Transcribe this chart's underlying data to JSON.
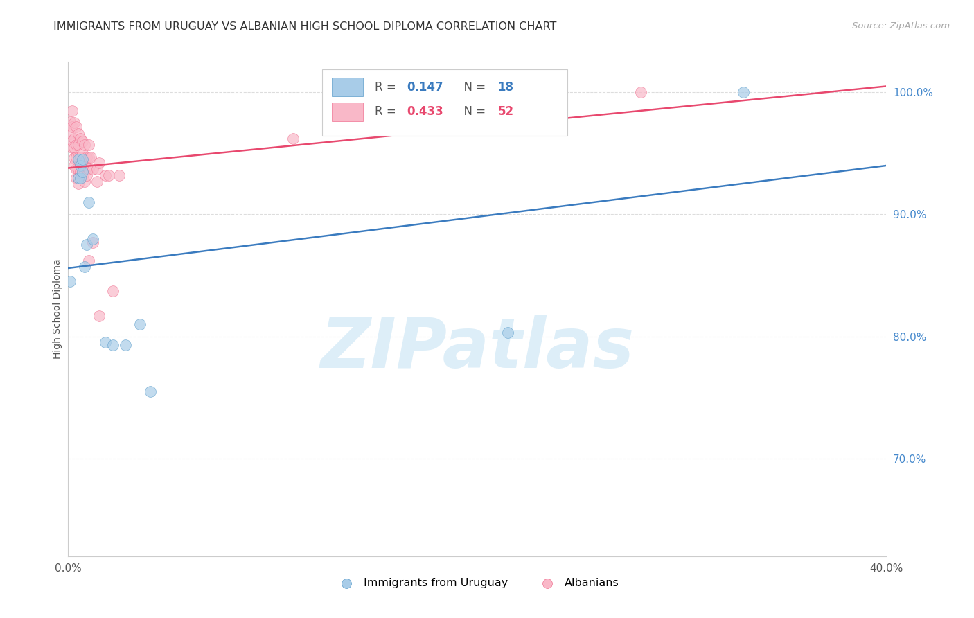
{
  "title": "IMMIGRANTS FROM URUGUAY VS ALBANIAN HIGH SCHOOL DIPLOMA CORRELATION CHART",
  "source": "Source: ZipAtlas.com",
  "ylabel": "High School Diploma",
  "xlim": [
    0.0,
    0.4
  ],
  "ylim": [
    0.62,
    1.025
  ],
  "yticks": [
    0.7,
    0.8,
    0.9,
    1.0
  ],
  "ytick_labels": [
    "70.0%",
    "80.0%",
    "90.0%",
    "100.0%"
  ],
  "xticks": [
    0.0,
    0.05,
    0.1,
    0.15,
    0.2,
    0.25,
    0.3,
    0.35,
    0.4
  ],
  "xtick_labels": [
    "0.0%",
    "",
    "",
    "",
    "",
    "",
    "",
    "",
    "40.0%"
  ],
  "blue_color": "#a8cce8",
  "pink_color": "#f9b8c8",
  "blue_edge_color": "#5b9dca",
  "pink_edge_color": "#f07090",
  "blue_line_color": "#3a7bbf",
  "pink_line_color": "#e8486e",
  "blue_scatter": [
    [
      0.001,
      0.845
    ],
    [
      0.005,
      0.93
    ],
    [
      0.005,
      0.945
    ],
    [
      0.006,
      0.94
    ],
    [
      0.006,
      0.93
    ],
    [
      0.007,
      0.945
    ],
    [
      0.007,
      0.935
    ],
    [
      0.008,
      0.857
    ],
    [
      0.009,
      0.875
    ],
    [
      0.01,
      0.91
    ],
    [
      0.012,
      0.88
    ],
    [
      0.018,
      0.795
    ],
    [
      0.022,
      0.793
    ],
    [
      0.028,
      0.793
    ],
    [
      0.035,
      0.81
    ],
    [
      0.04,
      0.755
    ],
    [
      0.215,
      0.803
    ],
    [
      0.33,
      1.0
    ]
  ],
  "pink_scatter": [
    [
      0.001,
      0.976
    ],
    [
      0.001,
      0.966
    ],
    [
      0.002,
      0.985
    ],
    [
      0.002,
      0.972
    ],
    [
      0.002,
      0.96
    ],
    [
      0.002,
      0.955
    ],
    [
      0.003,
      0.975
    ],
    [
      0.003,
      0.962
    ],
    [
      0.003,
      0.955
    ],
    [
      0.003,
      0.946
    ],
    [
      0.003,
      0.94
    ],
    [
      0.004,
      0.972
    ],
    [
      0.004,
      0.957
    ],
    [
      0.004,
      0.947
    ],
    [
      0.004,
      0.937
    ],
    [
      0.004,
      0.93
    ],
    [
      0.005,
      0.966
    ],
    [
      0.005,
      0.957
    ],
    [
      0.005,
      0.947
    ],
    [
      0.005,
      0.937
    ],
    [
      0.005,
      0.93
    ],
    [
      0.005,
      0.925
    ],
    [
      0.006,
      0.962
    ],
    [
      0.006,
      0.947
    ],
    [
      0.006,
      0.942
    ],
    [
      0.006,
      0.935
    ],
    [
      0.007,
      0.96
    ],
    [
      0.007,
      0.95
    ],
    [
      0.007,
      0.94
    ],
    [
      0.008,
      0.957
    ],
    [
      0.008,
      0.942
    ],
    [
      0.008,
      0.935
    ],
    [
      0.008,
      0.927
    ],
    [
      0.009,
      0.947
    ],
    [
      0.009,
      0.932
    ],
    [
      0.01,
      0.957
    ],
    [
      0.01,
      0.947
    ],
    [
      0.01,
      0.937
    ],
    [
      0.01,
      0.862
    ],
    [
      0.011,
      0.947
    ],
    [
      0.012,
      0.937
    ],
    [
      0.012,
      0.877
    ],
    [
      0.014,
      0.937
    ],
    [
      0.014,
      0.927
    ],
    [
      0.015,
      0.942
    ],
    [
      0.015,
      0.817
    ],
    [
      0.018,
      0.932
    ],
    [
      0.02,
      0.932
    ],
    [
      0.022,
      0.837
    ],
    [
      0.025,
      0.932
    ],
    [
      0.11,
      0.962
    ],
    [
      0.28,
      1.0
    ]
  ],
  "blue_line_endpoints": [
    [
      0.0,
      0.856
    ],
    [
      0.4,
      0.94
    ]
  ],
  "pink_line_endpoints": [
    [
      0.0,
      0.938
    ],
    [
      0.4,
      1.005
    ]
  ],
  "watermark": "ZIPatlas",
  "watermark_color": "#ddeef8",
  "background_color": "#ffffff",
  "grid_color": "#dddddd",
  "right_tick_color": "#4488cc",
  "title_color": "#333333",
  "title_fontsize": 11.5,
  "source_color": "#aaaaaa",
  "ylabel_color": "#555555"
}
